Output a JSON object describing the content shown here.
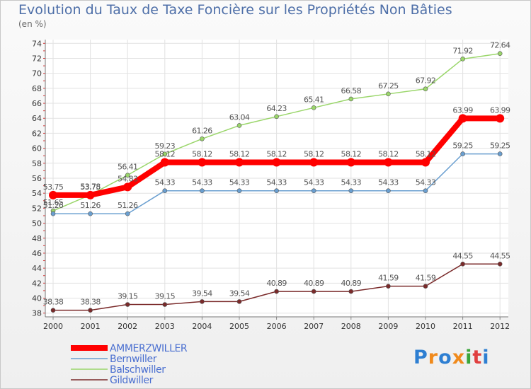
{
  "chart_data": {
    "type": "line",
    "title": "Evolution du Taux de Taxe Foncière sur les Propriétés Non Bâties",
    "ylabel": "(en %)",
    "xlabel": "",
    "ylim": [
      37.5,
      74.5
    ],
    "yticks": [
      38,
      40,
      42,
      44,
      46,
      48,
      50,
      52,
      54,
      56,
      58,
      60,
      62,
      64,
      66,
      68,
      70,
      72,
      74
    ],
    "categories": [
      "2000",
      "2001",
      "2002",
      "2003",
      "2004",
      "2005",
      "2006",
      "2007",
      "2008",
      "2009",
      "2010",
      "2011",
      "2012"
    ],
    "series": [
      {
        "name": "AMMERZWILLER",
        "color": "#ff0000",
        "values": [
          53.75,
          53.75,
          54.83,
          58.12,
          58.12,
          58.12,
          58.12,
          58.12,
          58.12,
          58.12,
          58.12,
          63.99,
          63.99
        ],
        "labels": [
          "53.75",
          "53.75",
          "54.83",
          "58.12",
          "58.12",
          "58.12",
          "58.12",
          "58.12",
          "58.12",
          "58.12",
          "58.12",
          "63.99",
          "63.99"
        ]
      },
      {
        "name": "Bernwiller",
        "color": "#6a9fd0",
        "values": [
          51.26,
          51.26,
          51.26,
          54.33,
          54.33,
          54.33,
          54.33,
          54.33,
          54.33,
          54.33,
          54.33,
          59.25,
          59.25
        ],
        "labels": [
          "51.26",
          "51.26",
          "51.26",
          "54.33",
          "54.33",
          "54.33",
          "54.33",
          "54.33",
          "54.33",
          "54.33",
          "54.33",
          "59.25",
          "59.25"
        ]
      },
      {
        "name": "Balschwiller",
        "color": "#9ad66a",
        "values": [
          51.65,
          53.78,
          56.41,
          59.23,
          61.26,
          63.04,
          64.23,
          65.41,
          66.58,
          67.25,
          67.92,
          71.92,
          72.64
        ],
        "labels": [
          "51.65",
          "53.78",
          "56.41",
          "59.23",
          "61.26",
          "63.04",
          "64.23",
          "65.41",
          "66.58",
          "67.25",
          "67.92",
          "71.92",
          "72.64"
        ]
      },
      {
        "name": "Gildwiller",
        "color": "#7a2a2a",
        "values": [
          38.38,
          38.38,
          39.15,
          39.15,
          39.54,
          39.54,
          40.89,
          40.89,
          40.89,
          41.59,
          41.59,
          44.55,
          44.55
        ],
        "labels": [
          "38.38",
          "38.38",
          "39.15",
          "39.15",
          "39.54",
          "39.54",
          "40.89",
          "40.89",
          "40.89",
          "41.59",
          "41.59",
          "44.55",
          "44.55"
        ]
      }
    ]
  },
  "brand": {
    "letters": [
      "P",
      "r",
      "o",
      "x",
      "i",
      "t",
      "i"
    ],
    "colors": [
      "#2e7fd2",
      "#f08a1c",
      "#2e7fd2",
      "#f08a1c",
      "#3aa63a",
      "#e04040",
      "#2e7fd2"
    ]
  }
}
